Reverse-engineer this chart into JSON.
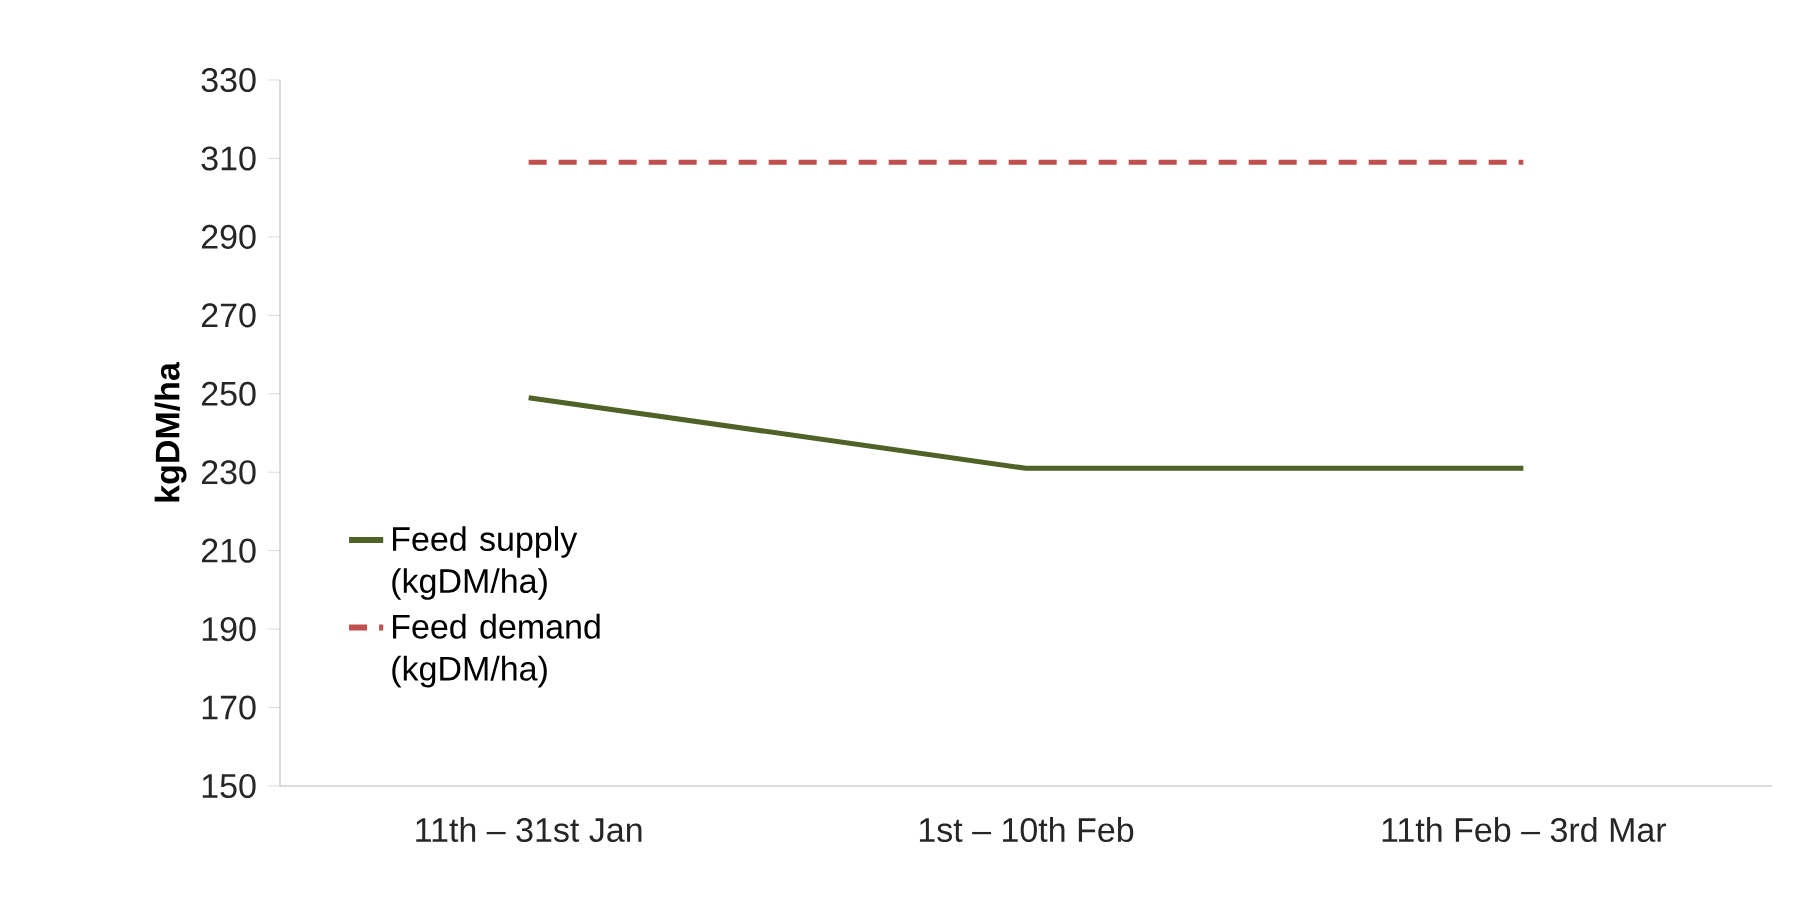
{
  "chart_data": {
    "type": "line",
    "ylabel": "kgDM/ha",
    "categories": [
      "11th – 31st Jan",
      "1st – 10th Feb",
      "11th Feb – 3rd Mar"
    ],
    "ylim": [
      150,
      330
    ],
    "yticks": [
      150,
      170,
      190,
      210,
      230,
      250,
      270,
      290,
      310,
      330
    ],
    "legend": "left",
    "series": [
      {
        "name": "Feed supply (kgDM/ha)",
        "color": "#4f6228",
        "line_style": "solid",
        "values": [
          249,
          231,
          231
        ]
      },
      {
        "name": "Feed demand (kgDM/ha)",
        "color": "#c0504d",
        "line_style": "dashed",
        "values": [
          309,
          309,
          309
        ]
      }
    ]
  }
}
